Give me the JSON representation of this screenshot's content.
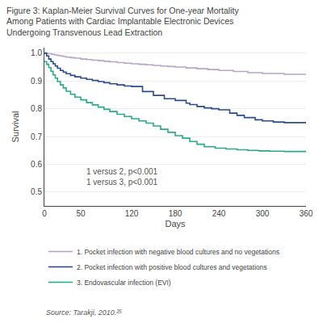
{
  "chart_data": {
    "type": "step",
    "title": "Figure 3: Kaplan-Meier Survival Curves for One-year Mortality\nAmong Patients with Cardiac Implantable Electronic Devices\nUndergoing Transvenous Lead Extraction",
    "x_label": "Days",
    "y_label": "Survival",
    "xlim": [
      0,
      360
    ],
    "ylim": [
      0.45,
      1.02
    ],
    "xticks": [
      0,
      50,
      120,
      180,
      240,
      300,
      360
    ],
    "yticks": [
      0.5,
      0.6,
      0.7,
      0.8,
      0.9,
      {
        "value": 1.0,
        "label": "1.0"
      }
    ],
    "grid": "y",
    "legend": "bottom",
    "annotation": {
      "text": "1 versus 2, p<0.001\n1 versus 3, p<0.001",
      "x": 55,
      "y": 0.595
    },
    "source": "Source: Tarakji, 2010.²⁵",
    "series": [
      {
        "name": "1. Pocket infection with negative blood cultures and no vegetations",
        "color": "#b8a4cc",
        "x": [
          0,
          3,
          6,
          10,
          14,
          18,
          22,
          26,
          30,
          36,
          42,
          50,
          58,
          66,
          74,
          82,
          90,
          100,
          110,
          120,
          130,
          140,
          150,
          160,
          170,
          180,
          195,
          210,
          225,
          240,
          260,
          280,
          300,
          330,
          360
        ],
        "values": [
          1.0,
          0.999,
          0.998,
          0.996,
          0.994,
          0.992,
          0.99,
          0.988,
          0.986,
          0.984,
          0.982,
          0.979,
          0.977,
          0.975,
          0.973,
          0.971,
          0.969,
          0.966,
          0.964,
          0.962,
          0.96,
          0.958,
          0.956,
          0.954,
          0.952,
          0.95,
          0.947,
          0.944,
          0.941,
          0.938,
          0.934,
          0.93,
          0.927,
          0.924,
          0.922
        ]
      },
      {
        "name": "2. Pocket infection with positive blood cultures and vegetations",
        "color": "#2b4c8c",
        "x": [
          0,
          3,
          6,
          9,
          12,
          15,
          18,
          22,
          26,
          30,
          36,
          42,
          50,
          58,
          66,
          74,
          82,
          90,
          100,
          110,
          120,
          135,
          150,
          165,
          180,
          195,
          200,
          210,
          220,
          230,
          240,
          255,
          265,
          275,
          290,
          300,
          315,
          330,
          360
        ],
        "values": [
          1.0,
          0.99,
          0.979,
          0.97,
          0.962,
          0.954,
          0.946,
          0.938,
          0.932,
          0.926,
          0.92,
          0.915,
          0.91,
          0.906,
          0.902,
          0.898,
          0.894,
          0.89,
          0.886,
          0.882,
          0.88,
          0.862,
          0.848,
          0.836,
          0.83,
          0.82,
          0.815,
          0.808,
          0.803,
          0.8,
          0.796,
          0.784,
          0.776,
          0.768,
          0.76,
          0.756,
          0.752,
          0.75,
          0.748
        ]
      },
      {
        "name": "3. Endovascular infection (EVI)",
        "color": "#2aaa88",
        "x": [
          0,
          3,
          6,
          9,
          12,
          15,
          18,
          22,
          26,
          30,
          36,
          42,
          50,
          58,
          66,
          74,
          82,
          90,
          100,
          110,
          120,
          130,
          140,
          150,
          160,
          170,
          180,
          190,
          200,
          210,
          220,
          235,
          250,
          265,
          280,
          295,
          310,
          330,
          360
        ],
        "values": [
          0.97,
          0.96,
          0.948,
          0.935,
          0.922,
          0.91,
          0.898,
          0.886,
          0.875,
          0.863,
          0.852,
          0.842,
          0.832,
          0.822,
          0.814,
          0.806,
          0.798,
          0.79,
          0.78,
          0.772,
          0.764,
          0.756,
          0.748,
          0.738,
          0.726,
          0.715,
          0.703,
          0.694,
          0.682,
          0.672,
          0.663,
          0.658,
          0.655,
          0.652,
          0.65,
          0.648,
          0.647,
          0.646,
          0.645
        ]
      }
    ]
  }
}
